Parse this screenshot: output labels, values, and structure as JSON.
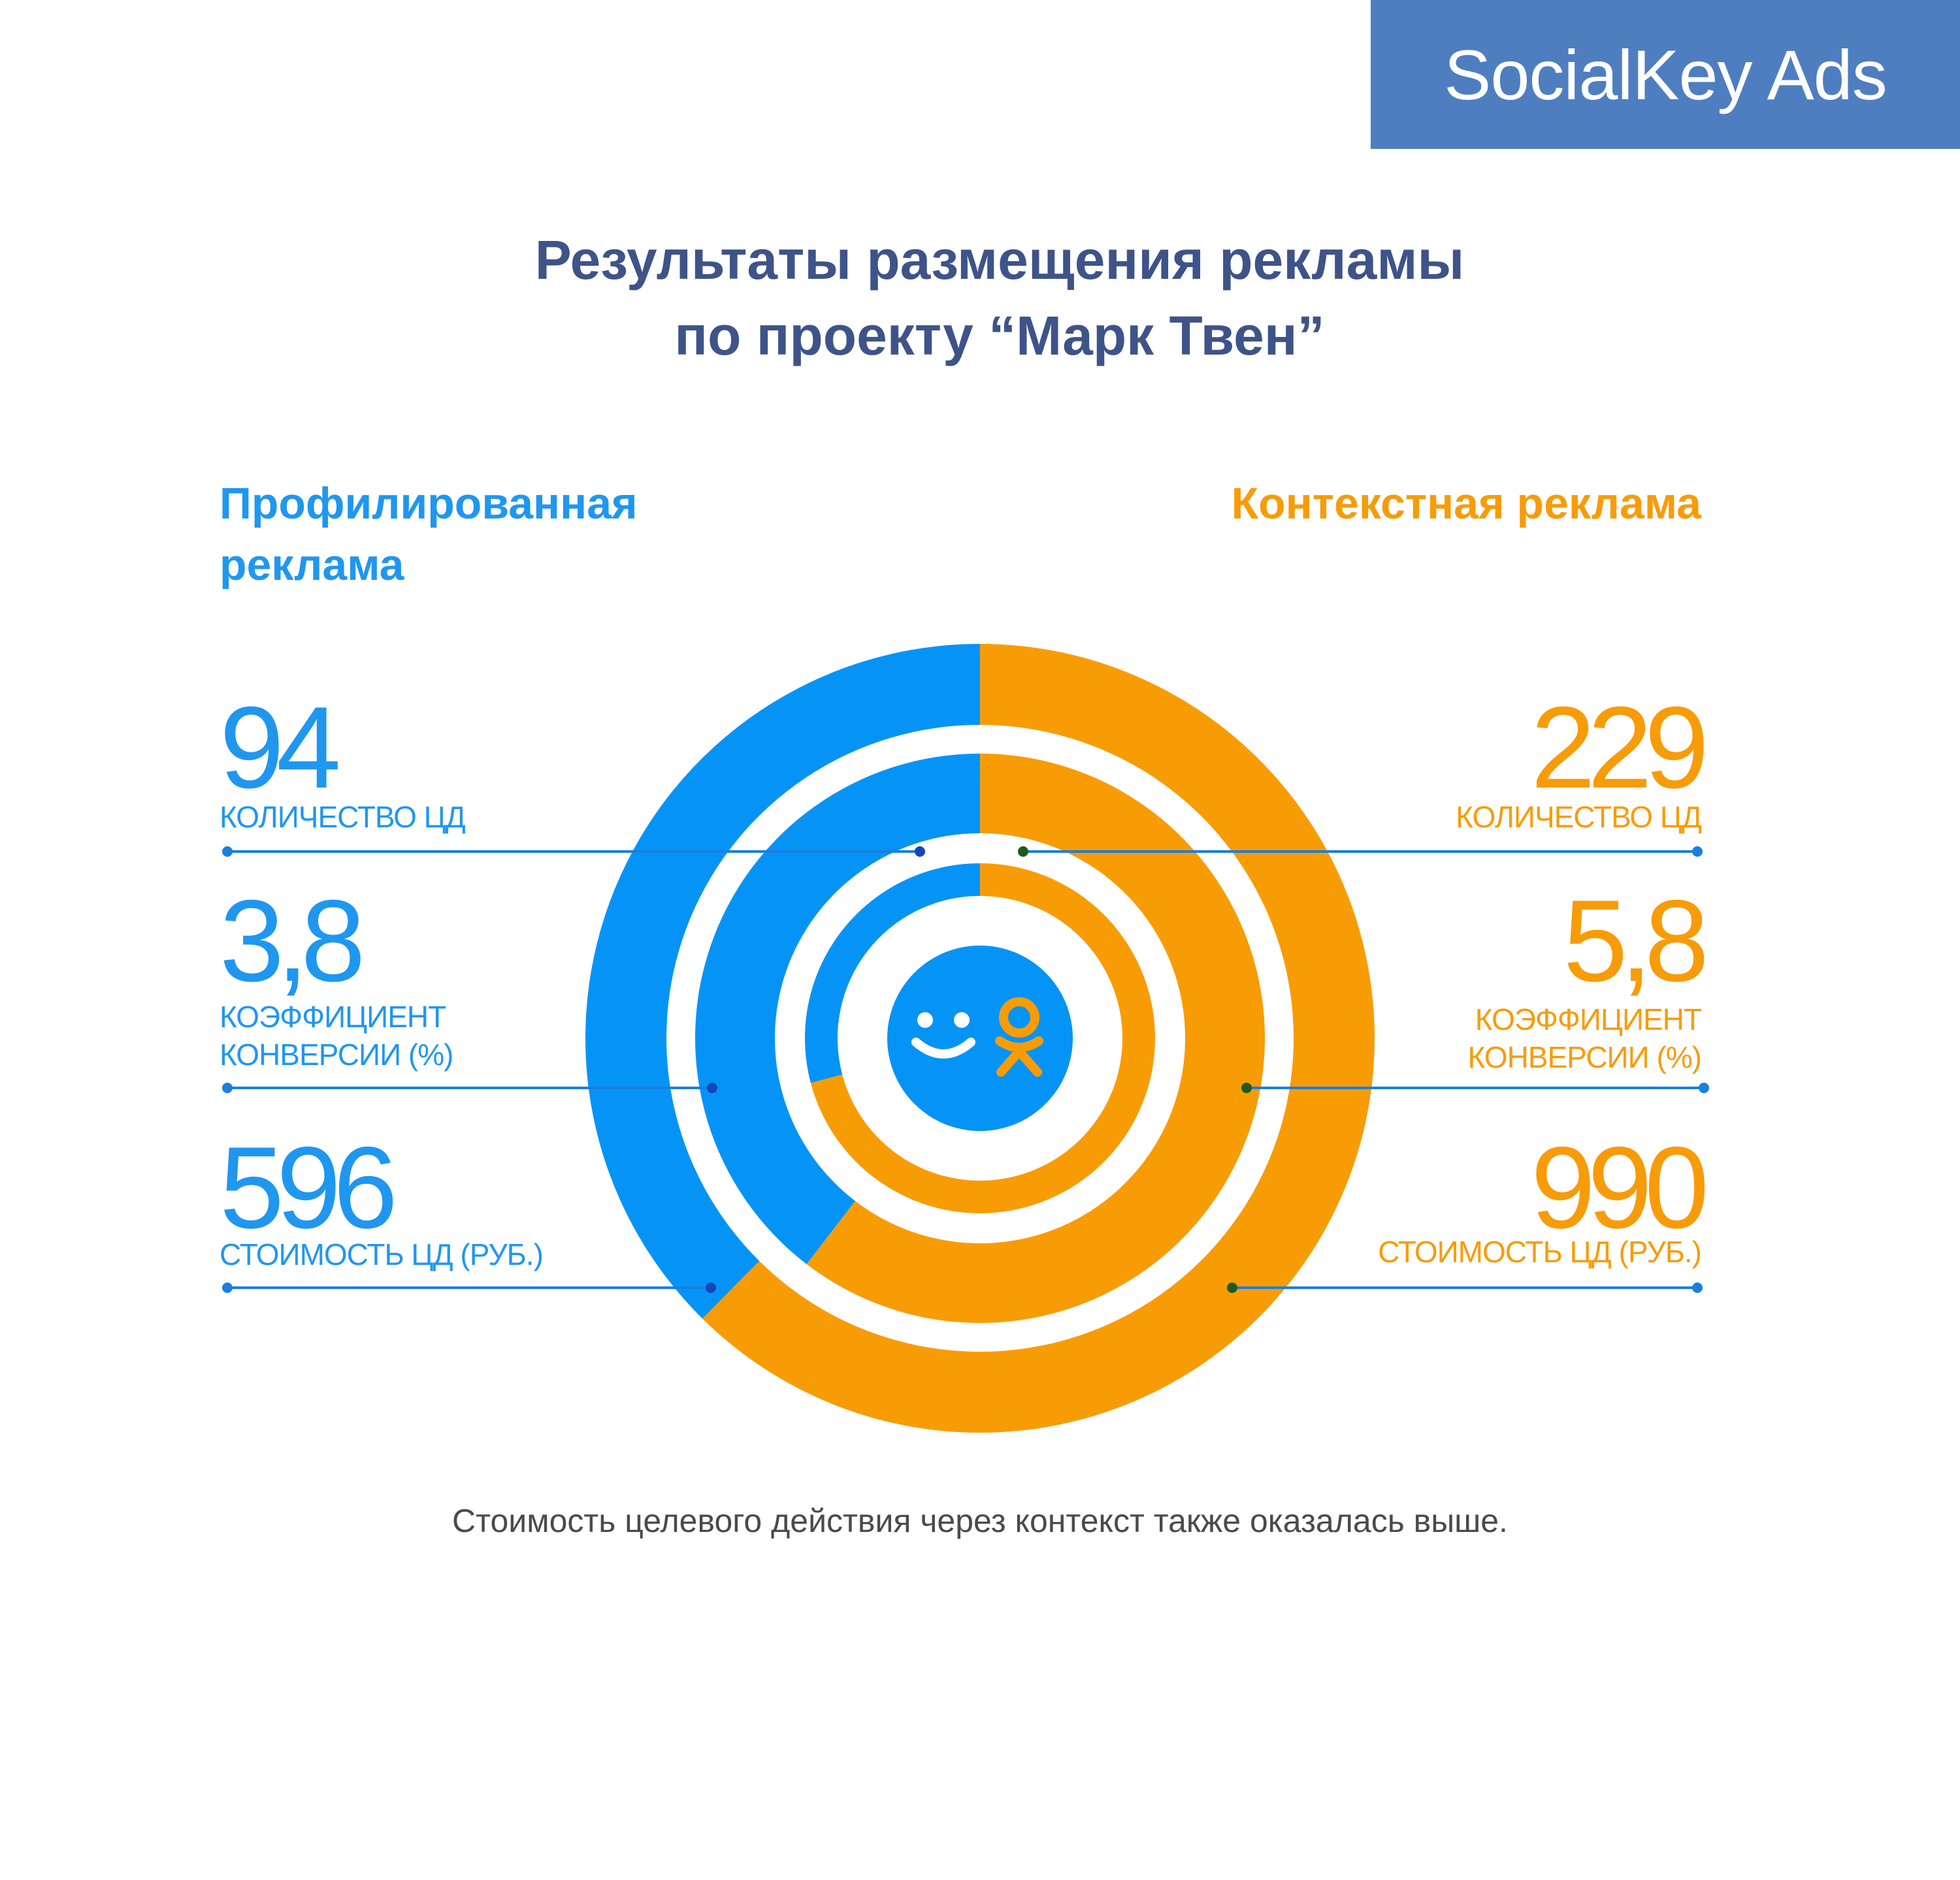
{
  "brand": {
    "label": "SocialKey Ads"
  },
  "title": {
    "line1": "Результаты размещения рекламы",
    "line2": "по проекту “Марк Твен”"
  },
  "colors": {
    "blue": "#0594f5",
    "orange": "#f89c06",
    "bg": "#ffffff",
    "brand_bg": "#4e7ec0"
  },
  "icons": {
    "center_left": "smile-icon",
    "center_right": "odnoklassniki-icon"
  },
  "chart_data": {
    "type": "radial-bar",
    "title": "Результаты размещения рекламы по проекту “Марк Твен”",
    "series": [
      {
        "name": "Профилированная реклама",
        "color": "#0594f5"
      },
      {
        "name": "Контекстная реклама",
        "color": "#f89c06"
      }
    ],
    "metrics": [
      {
        "label": "КОЛИЧЕСТВО ЦД",
        "profiled": 94,
        "profiled_text": "94",
        "contextual": 229,
        "contextual_text": "229"
      },
      {
        "label": "КОЭФФИЦИЕНТ КОНВЕРСИИ (%)",
        "label_line1": "КОЭФФИЦИЕНТ",
        "label_line2": "КОНВЕРСИИ (%)",
        "profiled": 3.8,
        "profiled_text": "3,8",
        "contextual": 5.8,
        "contextual_text": "5,8"
      },
      {
        "label": "СТОИМОСТЬ ЦД (РУБ.)",
        "profiled": 596,
        "profiled_text": "596",
        "contextual": 990,
        "contextual_text": "990"
      }
    ]
  },
  "footer": {
    "text": "Стоимость целевого действия через контекст также оказалась выше."
  }
}
